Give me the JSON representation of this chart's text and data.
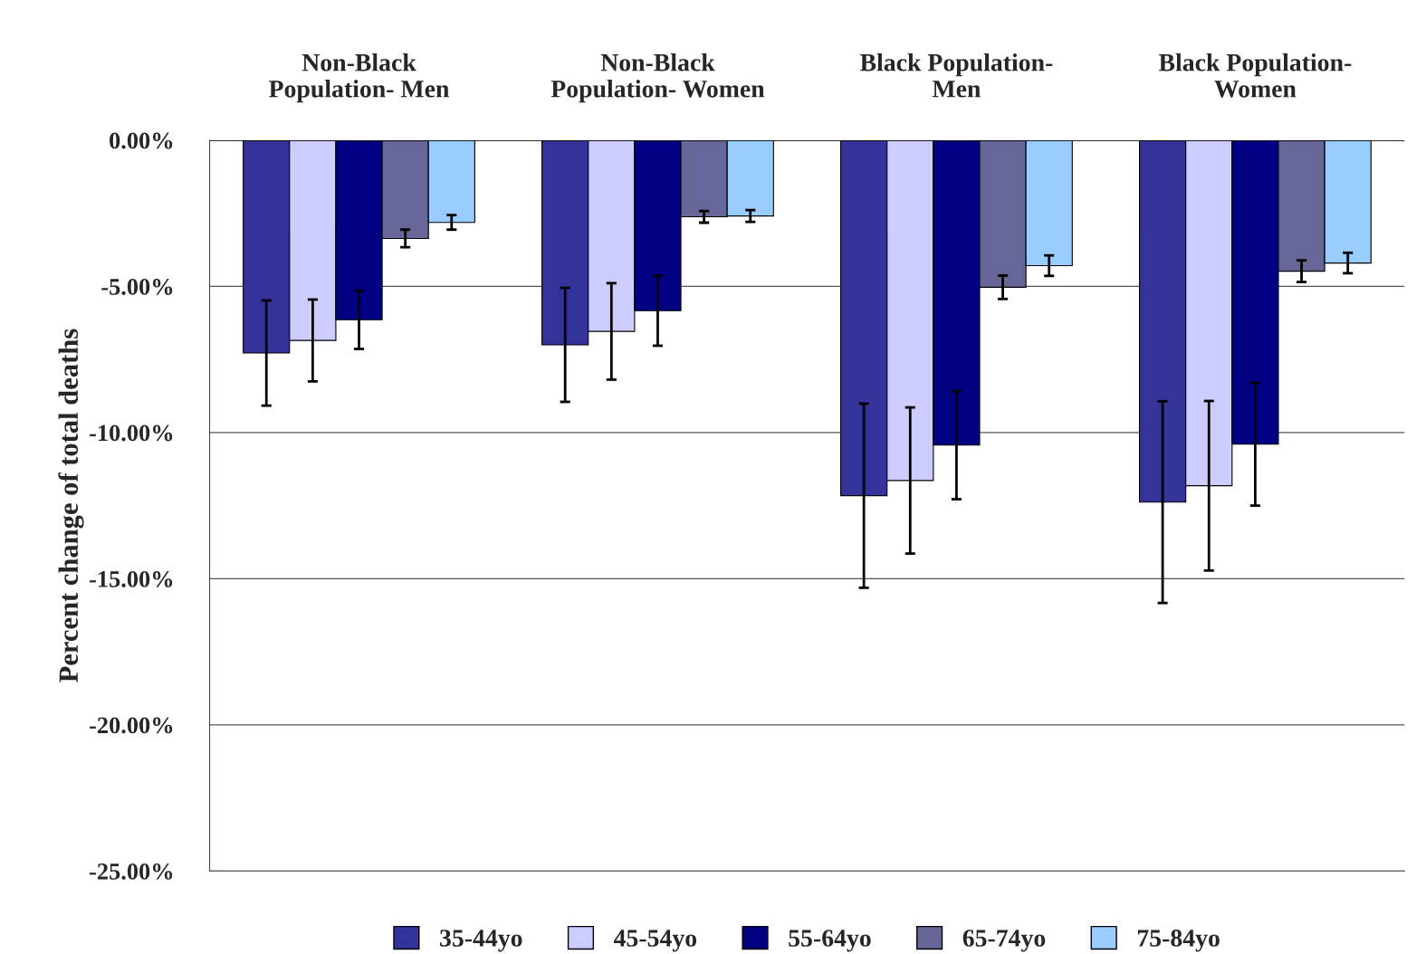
{
  "chart_data": {
    "type": "bar",
    "categories": [
      "Non-Black\nPopulation- Men",
      "Non-Black\nPopulation- Women",
      "Black Population-\nMen",
      "Black Population-\nWomen"
    ],
    "ylabel": "Percent change of total deaths",
    "ylim": [
      -25,
      0
    ],
    "yticks": [
      {
        "value": 0,
        "label": "0.00%"
      },
      {
        "value": -5,
        "label": "-5.00%"
      },
      {
        "value": -10,
        "label": "-10.00%"
      },
      {
        "value": -15,
        "label": "-15.00%"
      },
      {
        "value": -20,
        "label": "-20.00%"
      },
      {
        "value": -25,
        "label": "-25.00%"
      }
    ],
    "grid": "y",
    "legend": "bottom",
    "series": [
      {
        "name": "35-44yo",
        "color": "#333399",
        "values": [
          -7.28,
          -7.0,
          -12.16,
          -12.38
        ],
        "errors": [
          1.8,
          1.95,
          3.15,
          3.45
        ]
      },
      {
        "name": "45-54yo",
        "color": "#ccccff",
        "values": [
          -6.85,
          -6.54,
          -11.64,
          -11.82
        ],
        "errors": [
          1.4,
          1.65,
          2.5,
          2.9
        ]
      },
      {
        "name": "55-64yo",
        "color": "#000080",
        "values": [
          -6.14,
          -5.83,
          -10.43,
          -10.4
        ],
        "errors": [
          1.0,
          1.2,
          1.85,
          2.1
        ]
      },
      {
        "name": "65-74yo",
        "color": "#666699",
        "values": [
          -3.36,
          -2.62,
          -5.03,
          -4.48
        ],
        "errors": [
          0.3,
          0.2,
          0.4,
          0.37
        ]
      },
      {
        "name": "75-84yo",
        "color": "#99ccff",
        "values": [
          -2.81,
          -2.59,
          -4.29,
          -4.2
        ],
        "errors": [
          0.25,
          0.2,
          0.35,
          0.35
        ]
      }
    ]
  }
}
